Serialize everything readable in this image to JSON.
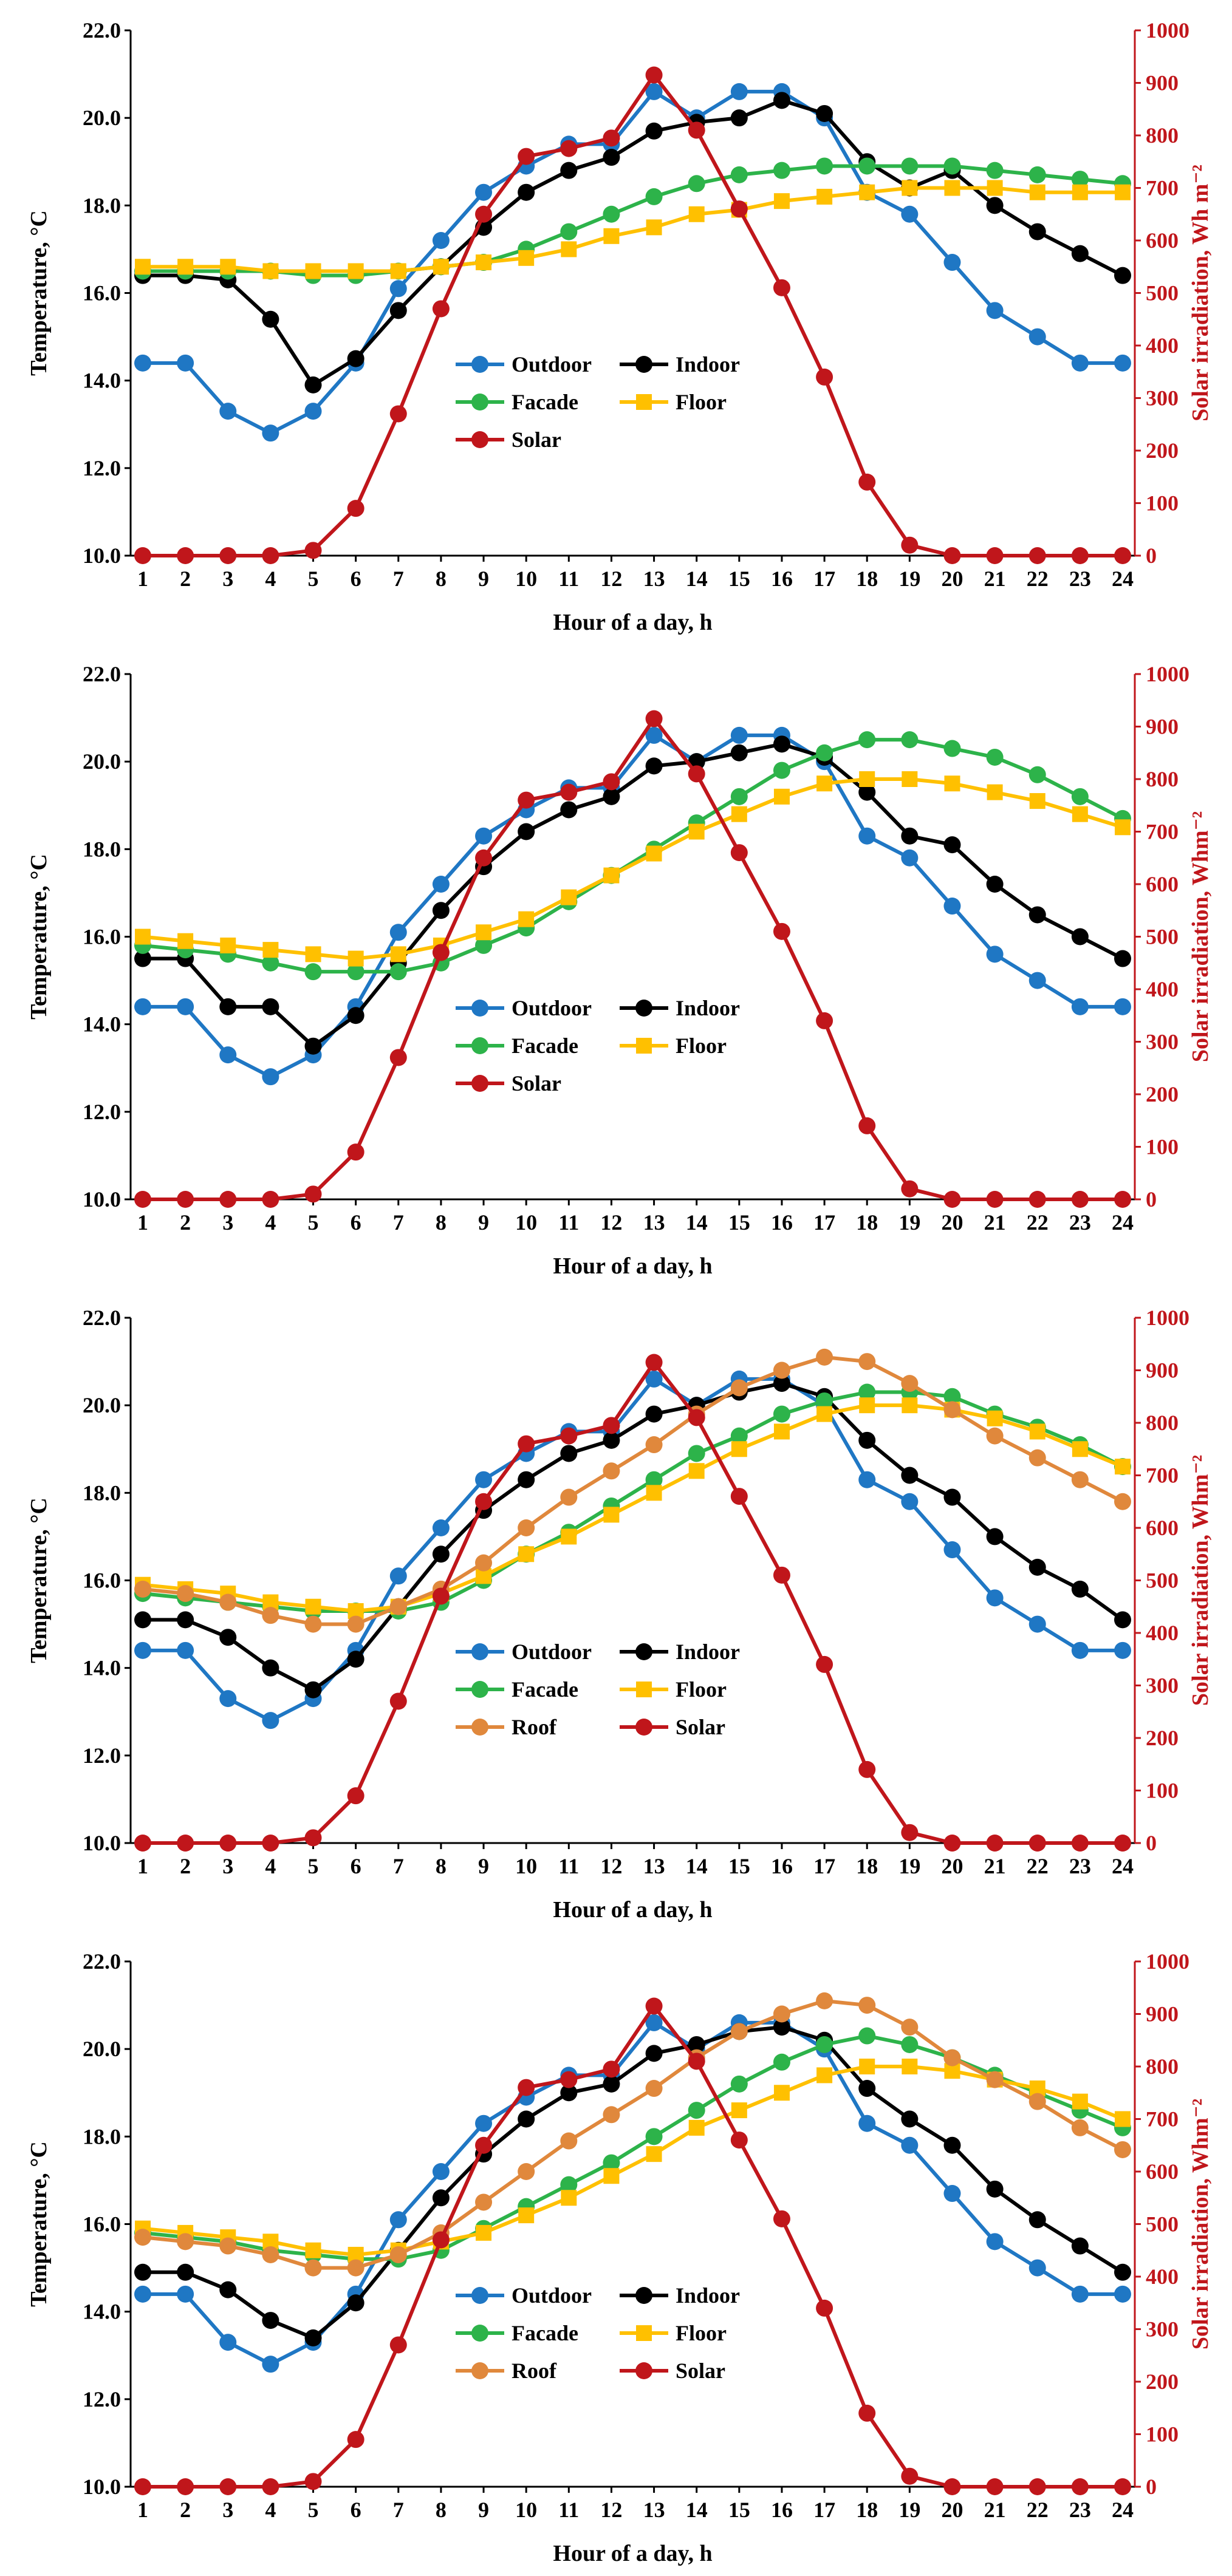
{
  "chart_data": [
    {
      "type": "line",
      "x": [
        1,
        2,
        3,
        4,
        5,
        6,
        7,
        8,
        9,
        10,
        11,
        12,
        13,
        14,
        15,
        16,
        17,
        18,
        19,
        20,
        21,
        22,
        23,
        24
      ],
      "xlabel": "Hour of a day, h",
      "ylabel": "Temperature, °C",
      "ylabel_right": "Solar irradiation, Wh m⁻²",
      "ylim": [
        10,
        22
      ],
      "ylim_right": [
        0,
        1000
      ],
      "yticks": [
        "10.0",
        "12.0",
        "14.0",
        "16.0",
        "18.0",
        "20.0",
        "22.0"
      ],
      "yticks_right": [
        "0",
        "100",
        "200",
        "300",
        "400",
        "500",
        "600",
        "700",
        "800",
        "900",
        "1000"
      ],
      "legend": [
        "Outdoor",
        "Indoor",
        "Facade",
        "Floor",
        "Solar"
      ],
      "series": [
        {
          "name": "Outdoor",
          "color": "#1f77c4",
          "axis": "left",
          "values": [
            14.4,
            14.4,
            13.3,
            12.8,
            13.3,
            14.4,
            16.1,
            17.2,
            18.3,
            18.9,
            19.4,
            19.4,
            20.6,
            20.0,
            20.6,
            20.6,
            20.0,
            18.3,
            17.8,
            16.7,
            15.6,
            15.0,
            14.4,
            14.4
          ]
        },
        {
          "name": "Indoor",
          "color": "#000000",
          "axis": "left",
          "values": [
            16.4,
            16.4,
            16.3,
            15.4,
            13.9,
            14.5,
            15.6,
            16.6,
            17.5,
            18.3,
            18.8,
            19.1,
            19.7,
            19.9,
            20.0,
            20.4,
            20.1,
            19.0,
            18.4,
            18.8,
            18.0,
            17.4,
            16.9,
            16.4
          ]
        },
        {
          "name": "Facade",
          "color": "#2db34a",
          "axis": "left",
          "values": [
            16.5,
            16.5,
            16.5,
            16.5,
            16.4,
            16.4,
            16.5,
            16.6,
            16.7,
            17.0,
            17.4,
            17.8,
            18.2,
            18.5,
            18.7,
            18.8,
            18.9,
            18.9,
            18.9,
            18.9,
            18.8,
            18.7,
            18.6,
            18.5
          ]
        },
        {
          "name": "Floor",
          "color": "#ffc000",
          "axis": "left",
          "values": [
            16.6,
            16.6,
            16.6,
            16.5,
            16.5,
            16.5,
            16.5,
            16.6,
            16.7,
            16.8,
            17.0,
            17.3,
            17.5,
            17.8,
            17.9,
            18.1,
            18.2,
            18.3,
            18.4,
            18.4,
            18.4,
            18.3,
            18.3,
            18.3
          ]
        },
        {
          "name": "Solar",
          "color": "#c0161b",
          "axis": "right",
          "values": [
            0,
            0,
            0,
            0,
            10,
            90,
            270,
            470,
            650,
            760,
            775,
            795,
            915,
            810,
            660,
            510,
            340,
            140,
            20,
            0,
            0,
            0,
            0,
            0
          ]
        }
      ]
    },
    {
      "type": "line",
      "x": [
        1,
        2,
        3,
        4,
        5,
        6,
        7,
        8,
        9,
        10,
        11,
        12,
        13,
        14,
        15,
        16,
        17,
        18,
        19,
        20,
        21,
        22,
        23,
        24
      ],
      "xlabel": "Hour of a day, h",
      "ylabel": "Temperature, °C",
      "ylabel_right": "Solar irradiation, Whm⁻²",
      "ylim": [
        10,
        22
      ],
      "ylim_right": [
        0,
        1000
      ],
      "yticks": [
        "10.0",
        "12.0",
        "14.0",
        "16.0",
        "18.0",
        "20.0",
        "22.0"
      ],
      "yticks_right": [
        "0",
        "100",
        "200",
        "300",
        "400",
        "500",
        "600",
        "700",
        "800",
        "900",
        "1000"
      ],
      "legend": [
        "Outdoor",
        "Indoor",
        "Facade",
        "Floor",
        "Solar"
      ],
      "series": [
        {
          "name": "Outdoor",
          "color": "#1f77c4",
          "axis": "left",
          "values": [
            14.4,
            14.4,
            13.3,
            12.8,
            13.3,
            14.4,
            16.1,
            17.2,
            18.3,
            18.9,
            19.4,
            19.4,
            20.6,
            20.0,
            20.6,
            20.6,
            20.0,
            18.3,
            17.8,
            16.7,
            15.6,
            15.0,
            14.4,
            14.4
          ]
        },
        {
          "name": "Indoor",
          "color": "#000000",
          "axis": "left",
          "values": [
            15.5,
            15.5,
            14.4,
            14.4,
            13.5,
            14.2,
            15.4,
            16.6,
            17.6,
            18.4,
            18.9,
            19.2,
            19.9,
            20.0,
            20.2,
            20.4,
            20.1,
            19.3,
            18.3,
            18.1,
            17.2,
            16.5,
            16.0,
            15.5
          ]
        },
        {
          "name": "Facade",
          "color": "#2db34a",
          "axis": "left",
          "values": [
            15.8,
            15.7,
            15.6,
            15.4,
            15.2,
            15.2,
            15.2,
            15.4,
            15.8,
            16.2,
            16.8,
            17.4,
            18.0,
            18.6,
            19.2,
            19.8,
            20.2,
            20.5,
            20.5,
            20.3,
            20.1,
            19.7,
            19.2,
            18.7
          ]
        },
        {
          "name": "Floor",
          "color": "#ffc000",
          "axis": "left",
          "values": [
            16.0,
            15.9,
            15.8,
            15.7,
            15.6,
            15.5,
            15.6,
            15.8,
            16.1,
            16.4,
            16.9,
            17.4,
            17.9,
            18.4,
            18.8,
            19.2,
            19.5,
            19.6,
            19.6,
            19.5,
            19.3,
            19.1,
            18.8,
            18.5
          ]
        },
        {
          "name": "Solar",
          "color": "#c0161b",
          "axis": "right",
          "values": [
            0,
            0,
            0,
            0,
            10,
            90,
            270,
            470,
            650,
            760,
            775,
            795,
            915,
            810,
            660,
            510,
            340,
            140,
            20,
            0,
            0,
            0,
            0,
            0
          ]
        }
      ]
    },
    {
      "type": "line",
      "x": [
        1,
        2,
        3,
        4,
        5,
        6,
        7,
        8,
        9,
        10,
        11,
        12,
        13,
        14,
        15,
        16,
        17,
        18,
        19,
        20,
        21,
        22,
        23,
        24
      ],
      "xlabel": "Hour of a day, h",
      "ylabel": "Temperature, °C",
      "ylabel_right": "Solar irradiation, Whm⁻²",
      "ylim": [
        10,
        22
      ],
      "ylim_right": [
        0,
        1000
      ],
      "yticks": [
        "10.0",
        "12.0",
        "14.0",
        "16.0",
        "18.0",
        "20.0",
        "22.0"
      ],
      "yticks_right": [
        "0",
        "100",
        "200",
        "300",
        "400",
        "500",
        "600",
        "700",
        "800",
        "900",
        "1000"
      ],
      "legend": [
        "Outdoor",
        "Indoor",
        "Facade",
        "Floor",
        "Roof",
        "Solar"
      ],
      "series": [
        {
          "name": "Outdoor",
          "color": "#1f77c4",
          "axis": "left",
          "values": [
            14.4,
            14.4,
            13.3,
            12.8,
            13.3,
            14.4,
            16.1,
            17.2,
            18.3,
            18.9,
            19.4,
            19.4,
            20.6,
            20.0,
            20.6,
            20.6,
            20.0,
            18.3,
            17.8,
            16.7,
            15.6,
            15.0,
            14.4,
            14.4
          ]
        },
        {
          "name": "Indoor",
          "color": "#000000",
          "axis": "left",
          "values": [
            15.1,
            15.1,
            14.7,
            14.0,
            13.5,
            14.2,
            15.4,
            16.6,
            17.6,
            18.3,
            18.9,
            19.2,
            19.8,
            20.0,
            20.3,
            20.5,
            20.2,
            19.2,
            18.4,
            17.9,
            17.0,
            16.3,
            15.8,
            15.1
          ]
        },
        {
          "name": "Facade",
          "color": "#2db34a",
          "axis": "left",
          "values": [
            15.7,
            15.6,
            15.5,
            15.4,
            15.3,
            15.3,
            15.3,
            15.5,
            16.0,
            16.6,
            17.1,
            17.7,
            18.3,
            18.9,
            19.3,
            19.8,
            20.1,
            20.3,
            20.3,
            20.2,
            19.8,
            19.5,
            19.1,
            18.6
          ]
        },
        {
          "name": "Floor",
          "color": "#ffc000",
          "axis": "left",
          "values": [
            15.9,
            15.8,
            15.7,
            15.5,
            15.4,
            15.3,
            15.4,
            15.7,
            16.1,
            16.6,
            17.0,
            17.5,
            18.0,
            18.5,
            19.0,
            19.4,
            19.8,
            20.0,
            20.0,
            19.9,
            19.7,
            19.4,
            19.0,
            18.6
          ]
        },
        {
          "name": "Roof",
          "color": "#e0883c",
          "axis": "left",
          "values": [
            15.8,
            15.7,
            15.5,
            15.2,
            15.0,
            15.0,
            15.4,
            15.8,
            16.4,
            17.2,
            17.9,
            18.5,
            19.1,
            19.8,
            20.4,
            20.8,
            21.1,
            21.0,
            20.5,
            19.9,
            19.3,
            18.8,
            18.3,
            17.8
          ]
        },
        {
          "name": "Solar",
          "color": "#c0161b",
          "axis": "right",
          "values": [
            0,
            0,
            0,
            0,
            10,
            90,
            270,
            470,
            650,
            760,
            775,
            795,
            915,
            810,
            660,
            510,
            340,
            140,
            20,
            0,
            0,
            0,
            0,
            0
          ]
        }
      ]
    },
    {
      "type": "line",
      "x": [
        1,
        2,
        3,
        4,
        5,
        6,
        7,
        8,
        9,
        10,
        11,
        12,
        13,
        14,
        15,
        16,
        17,
        18,
        19,
        20,
        21,
        22,
        23,
        24
      ],
      "xlabel": "Hour of a day, h",
      "ylabel": "Temperature, °C",
      "ylabel_right": "Solar irradiation, Whm⁻²",
      "ylim": [
        10,
        22
      ],
      "ylim_right": [
        0,
        1000
      ],
      "yticks": [
        "10.0",
        "12.0",
        "14.0",
        "16.0",
        "18.0",
        "20.0",
        "22.0"
      ],
      "yticks_right": [
        "0",
        "100",
        "200",
        "300",
        "400",
        "500",
        "600",
        "700",
        "800",
        "900",
        "1000"
      ],
      "legend": [
        "Outdoor",
        "Indoor",
        "Facade",
        "Floor",
        "Roof",
        "Solar"
      ],
      "series": [
        {
          "name": "Outdoor",
          "color": "#1f77c4",
          "axis": "left",
          "values": [
            14.4,
            14.4,
            13.3,
            12.8,
            13.3,
            14.4,
            16.1,
            17.2,
            18.3,
            18.9,
            19.4,
            19.4,
            20.6,
            20.0,
            20.6,
            20.6,
            20.0,
            18.3,
            17.8,
            16.7,
            15.6,
            15.0,
            14.4,
            14.4
          ]
        },
        {
          "name": "Indoor",
          "color": "#000000",
          "axis": "left",
          "values": [
            14.9,
            14.9,
            14.5,
            13.8,
            13.4,
            14.2,
            15.4,
            16.6,
            17.6,
            18.4,
            19.0,
            19.2,
            19.9,
            20.1,
            20.4,
            20.5,
            20.2,
            19.1,
            18.4,
            17.8,
            16.8,
            16.1,
            15.5,
            14.9
          ]
        },
        {
          "name": "Facade",
          "color": "#2db34a",
          "axis": "left",
          "values": [
            15.8,
            15.7,
            15.6,
            15.4,
            15.3,
            15.2,
            15.2,
            15.4,
            15.9,
            16.4,
            16.9,
            17.4,
            18.0,
            18.6,
            19.2,
            19.7,
            20.1,
            20.3,
            20.1,
            19.8,
            19.4,
            19.0,
            18.6,
            18.2
          ]
        },
        {
          "name": "Floor",
          "color": "#ffc000",
          "axis": "left",
          "values": [
            15.9,
            15.8,
            15.7,
            15.6,
            15.4,
            15.3,
            15.4,
            15.6,
            15.8,
            16.2,
            16.6,
            17.1,
            17.6,
            18.2,
            18.6,
            19.0,
            19.4,
            19.6,
            19.6,
            19.5,
            19.3,
            19.1,
            18.8,
            18.4
          ]
        },
        {
          "name": "Roof",
          "color": "#e0883c",
          "axis": "left",
          "values": [
            15.7,
            15.6,
            15.5,
            15.3,
            15.0,
            15.0,
            15.3,
            15.8,
            16.5,
            17.2,
            17.9,
            18.5,
            19.1,
            19.8,
            20.4,
            20.8,
            21.1,
            21.0,
            20.5,
            19.8,
            19.3,
            18.8,
            18.2,
            17.7
          ]
        },
        {
          "name": "Solar",
          "color": "#c0161b",
          "axis": "right",
          "values": [
            0,
            0,
            0,
            0,
            10,
            90,
            270,
            470,
            650,
            760,
            775,
            795,
            915,
            810,
            660,
            510,
            340,
            140,
            20,
            0,
            0,
            0,
            0,
            0
          ]
        }
      ]
    }
  ]
}
